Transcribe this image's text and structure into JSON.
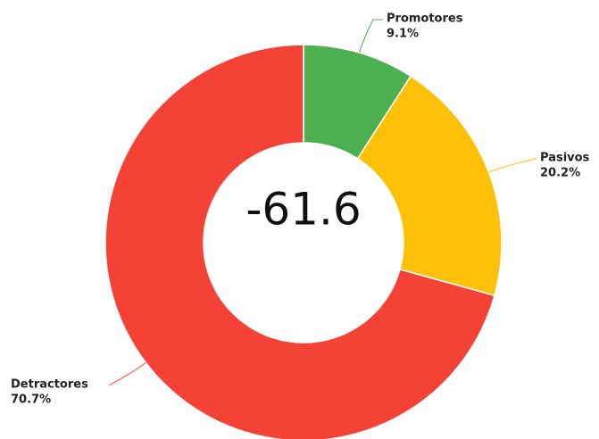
{
  "chart_data": {
    "type": "donut",
    "categories": [
      "Promotores",
      "Pasivos",
      "Detractores"
    ],
    "values": [
      9.1,
      20.2,
      70.7
    ],
    "value_labels": [
      "9.1%",
      "20.2%",
      "70.7%"
    ],
    "colors": [
      "#4caf50",
      "#ffc107",
      "#f44336"
    ],
    "center_label": "-61.6"
  }
}
